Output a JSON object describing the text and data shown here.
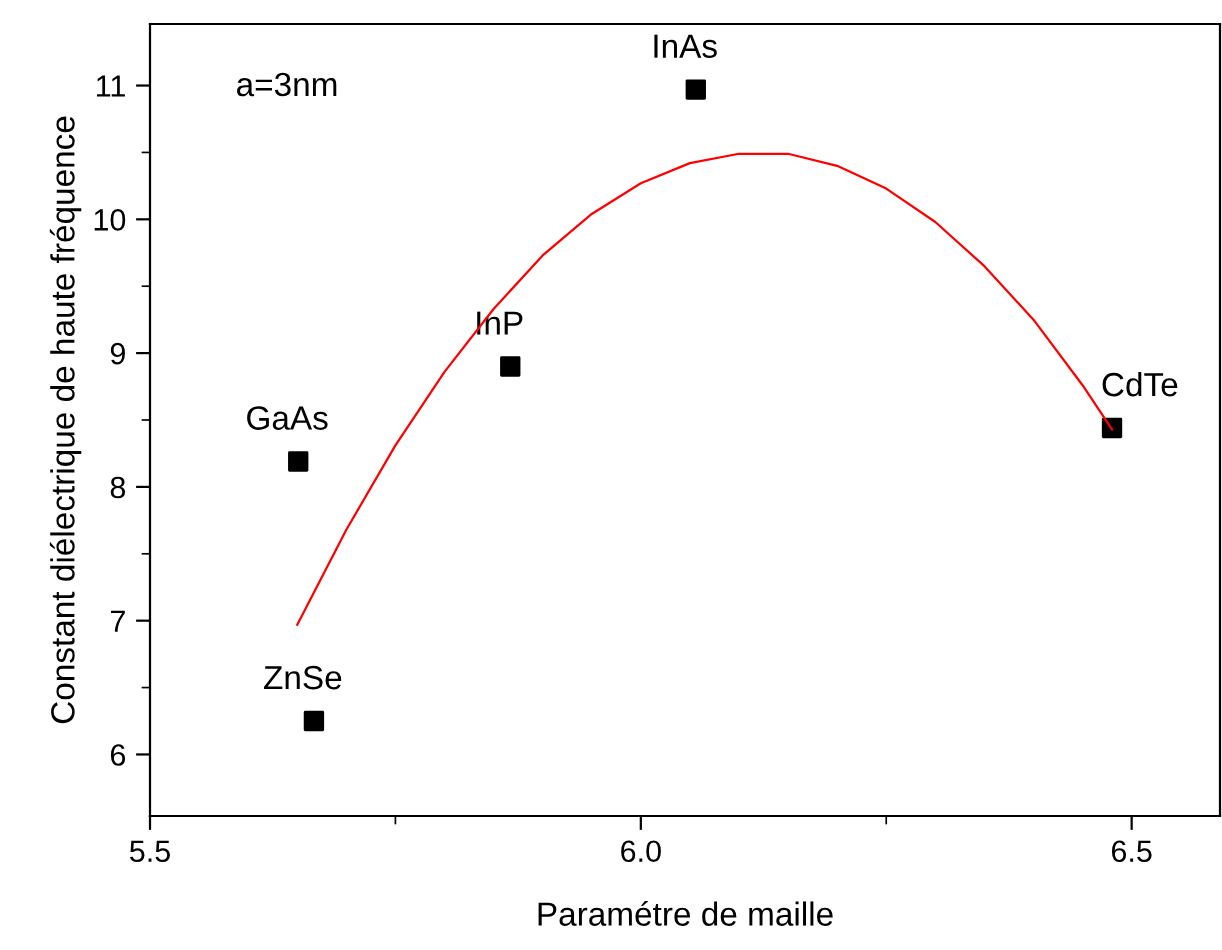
{
  "chart_data": {
    "type": "scatter",
    "xlabel": "Paramétre de maille",
    "ylabel": "Constant diélectrique de haute fréquence",
    "xlim": [
      5.5,
      6.59
    ],
    "ylim": [
      5.54,
      11.46
    ],
    "xticks": [
      5.5,
      {
        "value": 6.0,
        "label": "6.0"
      },
      6.5
    ],
    "yticks": [
      6,
      7,
      8,
      9,
      10,
      11
    ],
    "grid": false,
    "legend": false,
    "series": [
      {
        "marker": "square",
        "color": "#000000",
        "x": [
          5.667,
          5.651,
          5.867,
          6.056,
          6.48
        ],
        "values": [
          6.25,
          8.19,
          8.9,
          10.97,
          8.44
        ]
      },
      {
        "type": "line",
        "marker": "none",
        "color": "#ff0000",
        "line_style": "solid",
        "x": [
          5.65,
          5.7,
          5.75,
          5.8,
          5.85,
          5.9,
          5.95,
          6.0,
          6.05,
          6.1,
          6.15,
          6.2,
          6.25,
          6.3,
          6.35,
          6.4,
          6.45,
          6.48
        ],
        "values": [
          6.97,
          7.68,
          8.31,
          8.86,
          9.33,
          9.73,
          10.04,
          10.27,
          10.42,
          10.49,
          10.49,
          10.4,
          10.23,
          9.98,
          9.65,
          9.25,
          8.76,
          8.43
        ]
      }
    ],
    "annotations": [
      "a=3nm",
      {
        "text": "ZnSe",
        "x": 5.667,
        "y": 6.25
      },
      {
        "text": "GaAs",
        "x": 5.651,
        "y": 8.19
      },
      {
        "text": "InP",
        "x": 5.867,
        "y": 8.9
      },
      {
        "text": "InAs",
        "x": 6.056,
        "y": 10.97
      },
      {
        "text": "CdTe",
        "x": 6.48,
        "y": 8.44
      }
    ]
  }
}
